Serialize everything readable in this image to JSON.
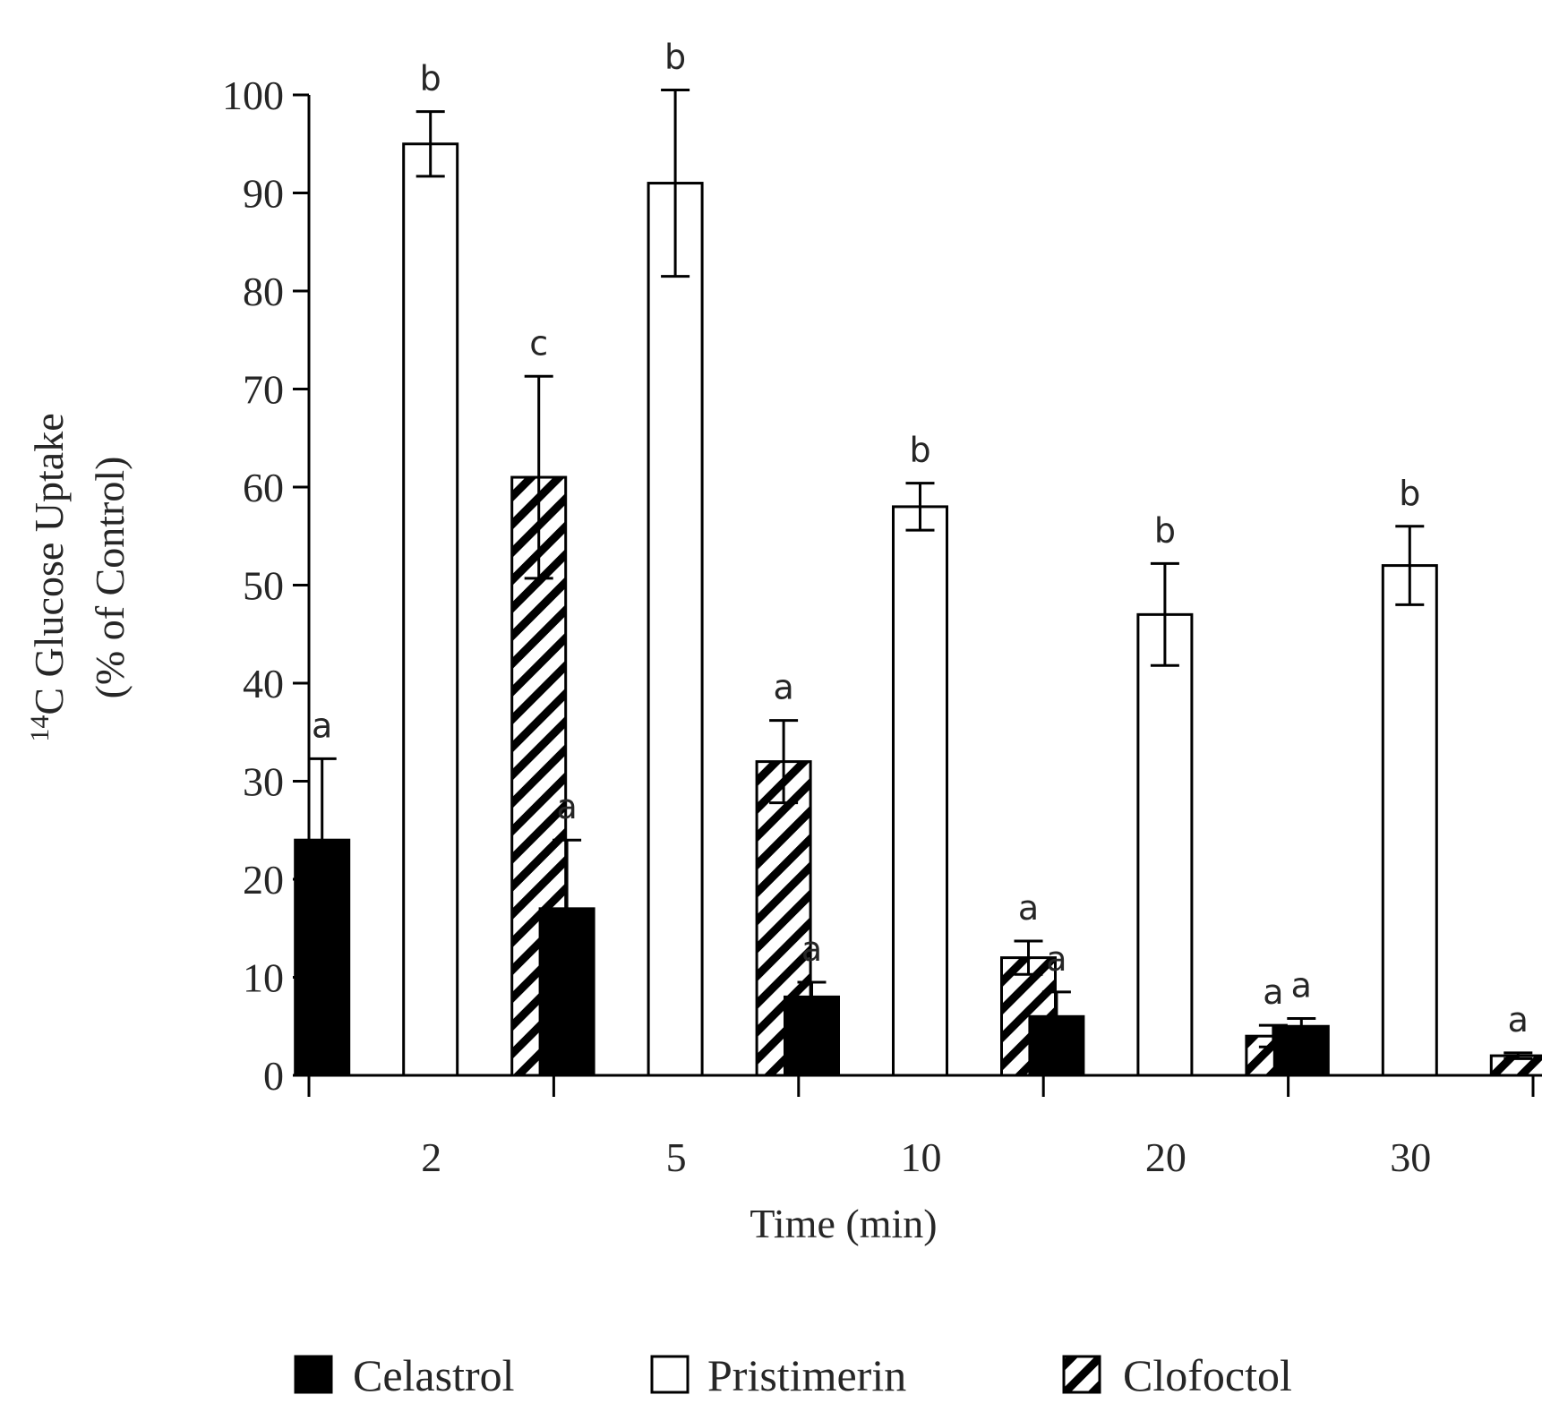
{
  "chart_data": {
    "type": "bar",
    "title": "",
    "xlabel": "Time (min)",
    "ylabel_sup": "14",
    "ylabel_line1": "C Glucose Uptake",
    "ylabel_line2": "(% of Control)",
    "ylim": [
      0,
      100
    ],
    "yticks": [
      0,
      10,
      20,
      30,
      40,
      50,
      60,
      70,
      80,
      90,
      100
    ],
    "categories": [
      "2",
      "5",
      "10",
      "20",
      "30"
    ],
    "series": [
      {
        "name": "Celastrol",
        "pattern": "solid",
        "values": [
          24,
          17,
          8,
          6,
          5
        ],
        "errors": [
          8.3,
          7.0,
          1.5,
          2.5,
          0.8
        ],
        "letters": [
          "a",
          "a",
          "a",
          "a",
          "a"
        ]
      },
      {
        "name": "Pristimerin",
        "pattern": "open",
        "values": [
          95,
          91,
          58,
          47,
          52
        ],
        "errors": [
          3.3,
          9.5,
          2.4,
          5.2,
          4.0
        ],
        "letters": [
          "b",
          "b",
          "b",
          "b",
          "b"
        ]
      },
      {
        "name": "Clofoctol",
        "pattern": "hatched",
        "values": [
          61,
          32,
          12,
          4,
          2
        ],
        "errors": [
          10.3,
          4.2,
          1.7,
          1.1,
          0.3
        ],
        "letters": [
          "c",
          "a",
          "a",
          "a",
          "a"
        ]
      }
    ],
    "legend_position": "bottom",
    "grid": false,
    "colors": {
      "ink": "#000000",
      "text": "#262626",
      "fill_open": "#ffffff"
    }
  }
}
